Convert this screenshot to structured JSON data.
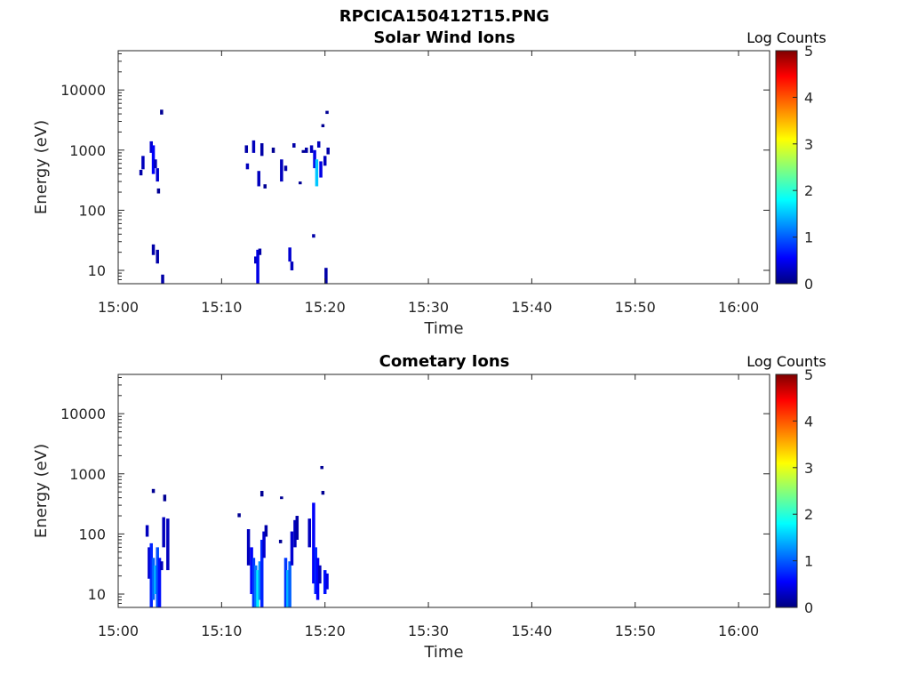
{
  "figure": {
    "title": "RPCICA150412T15.PNG"
  },
  "chart_data": [
    {
      "type": "heatmap",
      "title": "Solar Wind Ions",
      "xlabel": "Time",
      "ylabel": "Energy (eV)",
      "yscale": "log",
      "xlim": [
        "15:00",
        "16:03"
      ],
      "ylim": [
        6,
        45000
      ],
      "xticks": [
        "15:00",
        "15:10",
        "15:20",
        "15:30",
        "15:40",
        "15:50",
        "16:00"
      ],
      "yticks": [
        10,
        100,
        1000,
        10000
      ],
      "ytick_labels": [
        "10",
        "100",
        "1000",
        "10000"
      ],
      "colorbar": {
        "label": "Log Counts",
        "range": [
          0,
          5
        ],
        "ticks": [
          "0",
          "1",
          "2",
          "3",
          "4",
          "5"
        ],
        "colormap": "jet"
      },
      "cells": [
        {
          "t": 2.2,
          "e_lo": 380,
          "e_hi": 470,
          "v": 0.2
        },
        {
          "t": 2.4,
          "e_lo": 480,
          "e_hi": 800,
          "v": 0.3
        },
        {
          "t": 3.2,
          "e_lo": 900,
          "e_hi": 1400,
          "v": 0.4
        },
        {
          "t": 3.4,
          "e_lo": 400,
          "e_hi": 1200,
          "v": 0.6
        },
        {
          "t": 3.6,
          "e_lo": 500,
          "e_hi": 700,
          "v": 0.3
        },
        {
          "t": 3.8,
          "e_lo": 300,
          "e_hi": 500,
          "v": 0.4
        },
        {
          "t": 3.4,
          "e_lo": 18,
          "e_hi": 27,
          "v": 0.2
        },
        {
          "t": 3.8,
          "e_lo": 13,
          "e_hi": 22,
          "v": 0.2
        },
        {
          "t": 3.9,
          "e_lo": 190,
          "e_hi": 230,
          "v": 0.1
        },
        {
          "t": 4.2,
          "e_lo": 3900,
          "e_hi": 4700,
          "v": 0.1
        },
        {
          "t": 4.3,
          "e_lo": 6,
          "e_hi": 8.5,
          "v": 0.2
        },
        {
          "t": 12.4,
          "e_lo": 900,
          "e_hi": 1200,
          "v": 0.2
        },
        {
          "t": 12.5,
          "e_lo": 480,
          "e_hi": 600,
          "v": 0.3
        },
        {
          "t": 13.1,
          "e_lo": 900,
          "e_hi": 1450,
          "v": 0.3
        },
        {
          "t": 13.3,
          "e_lo": 13,
          "e_hi": 17,
          "v": 0.3
        },
        {
          "t": 13.5,
          "e_lo": 6,
          "e_hi": 22,
          "v": 0.5
        },
        {
          "t": 13.6,
          "e_lo": 250,
          "e_hi": 450,
          "v": 0.3
        },
        {
          "t": 13.7,
          "e_lo": 18,
          "e_hi": 23,
          "v": 0.2
        },
        {
          "t": 13.9,
          "e_lo": 800,
          "e_hi": 1300,
          "v": 0.2
        },
        {
          "t": 14.2,
          "e_lo": 230,
          "e_hi": 270,
          "v": 0.1
        },
        {
          "t": 15.0,
          "e_lo": 900,
          "e_hi": 1100,
          "v": 0.1
        },
        {
          "t": 15.8,
          "e_lo": 300,
          "e_hi": 700,
          "v": 0.3
        },
        {
          "t": 16.2,
          "e_lo": 450,
          "e_hi": 550,
          "v": 0.2
        },
        {
          "t": 16.6,
          "e_lo": 14,
          "e_hi": 24,
          "v": 0.4
        },
        {
          "t": 16.8,
          "e_lo": 10,
          "e_hi": 14,
          "v": 0.3
        },
        {
          "t": 17.0,
          "e_lo": 1100,
          "e_hi": 1300,
          "v": 0.2
        },
        {
          "t": 17.6,
          "e_lo": 270,
          "e_hi": 300,
          "v": 0.1
        },
        {
          "t": 17.9,
          "e_lo": 900,
          "e_hi": 1000,
          "v": 0.1
        },
        {
          "t": 18.2,
          "e_lo": 900,
          "e_hi": 1100,
          "v": 0.2
        },
        {
          "t": 18.7,
          "e_lo": 900,
          "e_hi": 1200,
          "v": 0.3
        },
        {
          "t": 18.9,
          "e_lo": 35,
          "e_hi": 40,
          "v": 0.2
        },
        {
          "t": 19.0,
          "e_lo": 500,
          "e_hi": 1000,
          "v": 0.5
        },
        {
          "t": 19.2,
          "e_lo": 250,
          "e_hi": 700,
          "v": 1.6
        },
        {
          "t": 19.4,
          "e_lo": 1100,
          "e_hi": 1400,
          "v": 0.3
        },
        {
          "t": 19.6,
          "e_lo": 350,
          "e_hi": 650,
          "v": 0.5
        },
        {
          "t": 19.8,
          "e_lo": 2400,
          "e_hi": 2700,
          "v": 0.1
        },
        {
          "t": 20.0,
          "e_lo": 550,
          "e_hi": 800,
          "v": 0.3
        },
        {
          "t": 20.1,
          "e_lo": 6,
          "e_hi": 11,
          "v": 0.2
        },
        {
          "t": 20.2,
          "e_lo": 4000,
          "e_hi": 4500,
          "v": 0.1
        },
        {
          "t": 20.3,
          "e_lo": 850,
          "e_hi": 1100,
          "v": 0.2
        }
      ]
    },
    {
      "type": "heatmap",
      "title": "Cometary Ions",
      "xlabel": "Time",
      "ylabel": "Energy (eV)",
      "yscale": "log",
      "xlim": [
        "15:00",
        "16:03"
      ],
      "ylim": [
        6,
        45000
      ],
      "xticks": [
        "15:00",
        "15:10",
        "15:20",
        "15:30",
        "15:40",
        "15:50",
        "16:00"
      ],
      "yticks": [
        10,
        100,
        1000,
        10000
      ],
      "ytick_labels": [
        "10",
        "100",
        "1000",
        "10000"
      ],
      "colorbar": {
        "label": "Log Counts",
        "range": [
          0,
          5
        ],
        "ticks": [
          "0",
          "1",
          "2",
          "3",
          "4",
          "5"
        ],
        "colormap": "jet"
      },
      "cells": [
        {
          "t": 2.8,
          "e_lo": 90,
          "e_hi": 140,
          "v": 0.3
        },
        {
          "t": 3.0,
          "e_lo": 18,
          "e_hi": 60,
          "v": 0.4
        },
        {
          "t": 3.2,
          "e_lo": 6,
          "e_hi": 70,
          "v": 0.8
        },
        {
          "t": 3.4,
          "e_lo": 8,
          "e_hi": 40,
          "v": 1.1
        },
        {
          "t": 3.6,
          "e_lo": 10,
          "e_hi": 30,
          "v": 1.5
        },
        {
          "t": 3.8,
          "e_lo": 6,
          "e_hi": 60,
          "v": 1.0
        },
        {
          "t": 4.0,
          "e_lo": 6,
          "e_hi": 40,
          "v": 0.7
        },
        {
          "t": 4.2,
          "e_lo": 25,
          "e_hi": 35,
          "v": 0.3
        },
        {
          "t": 3.4,
          "e_lo": 480,
          "e_hi": 560,
          "v": 0.1
        },
        {
          "t": 4.4,
          "e_lo": 60,
          "e_hi": 190,
          "v": 0.3
        },
        {
          "t": 4.5,
          "e_lo": 350,
          "e_hi": 450,
          "v": 0.1
        },
        {
          "t": 4.8,
          "e_lo": 25,
          "e_hi": 180,
          "v": 0.3
        },
        {
          "t": 11.7,
          "e_lo": 190,
          "e_hi": 220,
          "v": 0.1
        },
        {
          "t": 12.6,
          "e_lo": 30,
          "e_hi": 120,
          "v": 0.3
        },
        {
          "t": 12.9,
          "e_lo": 10,
          "e_hi": 60,
          "v": 0.6
        },
        {
          "t": 13.1,
          "e_lo": 6,
          "e_hi": 40,
          "v": 0.9
        },
        {
          "t": 13.3,
          "e_lo": 6,
          "e_hi": 30,
          "v": 1.2
        },
        {
          "t": 13.5,
          "e_lo": 6,
          "e_hi": 25,
          "v": 1.8
        },
        {
          "t": 13.7,
          "e_lo": 8,
          "e_hi": 35,
          "v": 1.3
        },
        {
          "t": 13.9,
          "e_lo": 6,
          "e_hi": 80,
          "v": 0.8
        },
        {
          "t": 14.1,
          "e_lo": 40,
          "e_hi": 110,
          "v": 0.4
        },
        {
          "t": 14.3,
          "e_lo": 90,
          "e_hi": 140,
          "v": 0.2
        },
        {
          "t": 13.9,
          "e_lo": 420,
          "e_hi": 520,
          "v": 0.1
        },
        {
          "t": 15.8,
          "e_lo": 380,
          "e_hi": 420,
          "v": 0.1
        },
        {
          "t": 15.7,
          "e_lo": 70,
          "e_hi": 80,
          "v": 0.1
        },
        {
          "t": 16.2,
          "e_lo": 6,
          "e_hi": 40,
          "v": 0.9
        },
        {
          "t": 16.4,
          "e_lo": 6,
          "e_hi": 25,
          "v": 1.5
        },
        {
          "t": 16.6,
          "e_lo": 6,
          "e_hi": 35,
          "v": 1.1
        },
        {
          "t": 16.8,
          "e_lo": 30,
          "e_hi": 110,
          "v": 0.4
        },
        {
          "t": 17.1,
          "e_lo": 60,
          "e_hi": 170,
          "v": 0.3
        },
        {
          "t": 17.3,
          "e_lo": 80,
          "e_hi": 200,
          "v": 0.2
        },
        {
          "t": 18.5,
          "e_lo": 60,
          "e_hi": 180,
          "v": 0.3
        },
        {
          "t": 18.9,
          "e_lo": 15,
          "e_hi": 330,
          "v": 0.6
        },
        {
          "t": 19.1,
          "e_lo": 10,
          "e_hi": 60,
          "v": 0.8
        },
        {
          "t": 19.3,
          "e_lo": 8,
          "e_hi": 40,
          "v": 0.6
        },
        {
          "t": 19.5,
          "e_lo": 15,
          "e_hi": 30,
          "v": 0.3
        },
        {
          "t": 19.7,
          "e_lo": 1200,
          "e_hi": 1350,
          "v": 0.1
        },
        {
          "t": 19.8,
          "e_lo": 450,
          "e_hi": 520,
          "v": 0.1
        },
        {
          "t": 20.0,
          "e_lo": 10,
          "e_hi": 25,
          "v": 0.7
        },
        {
          "t": 20.2,
          "e_lo": 12,
          "e_hi": 22,
          "v": 0.5
        }
      ]
    }
  ]
}
